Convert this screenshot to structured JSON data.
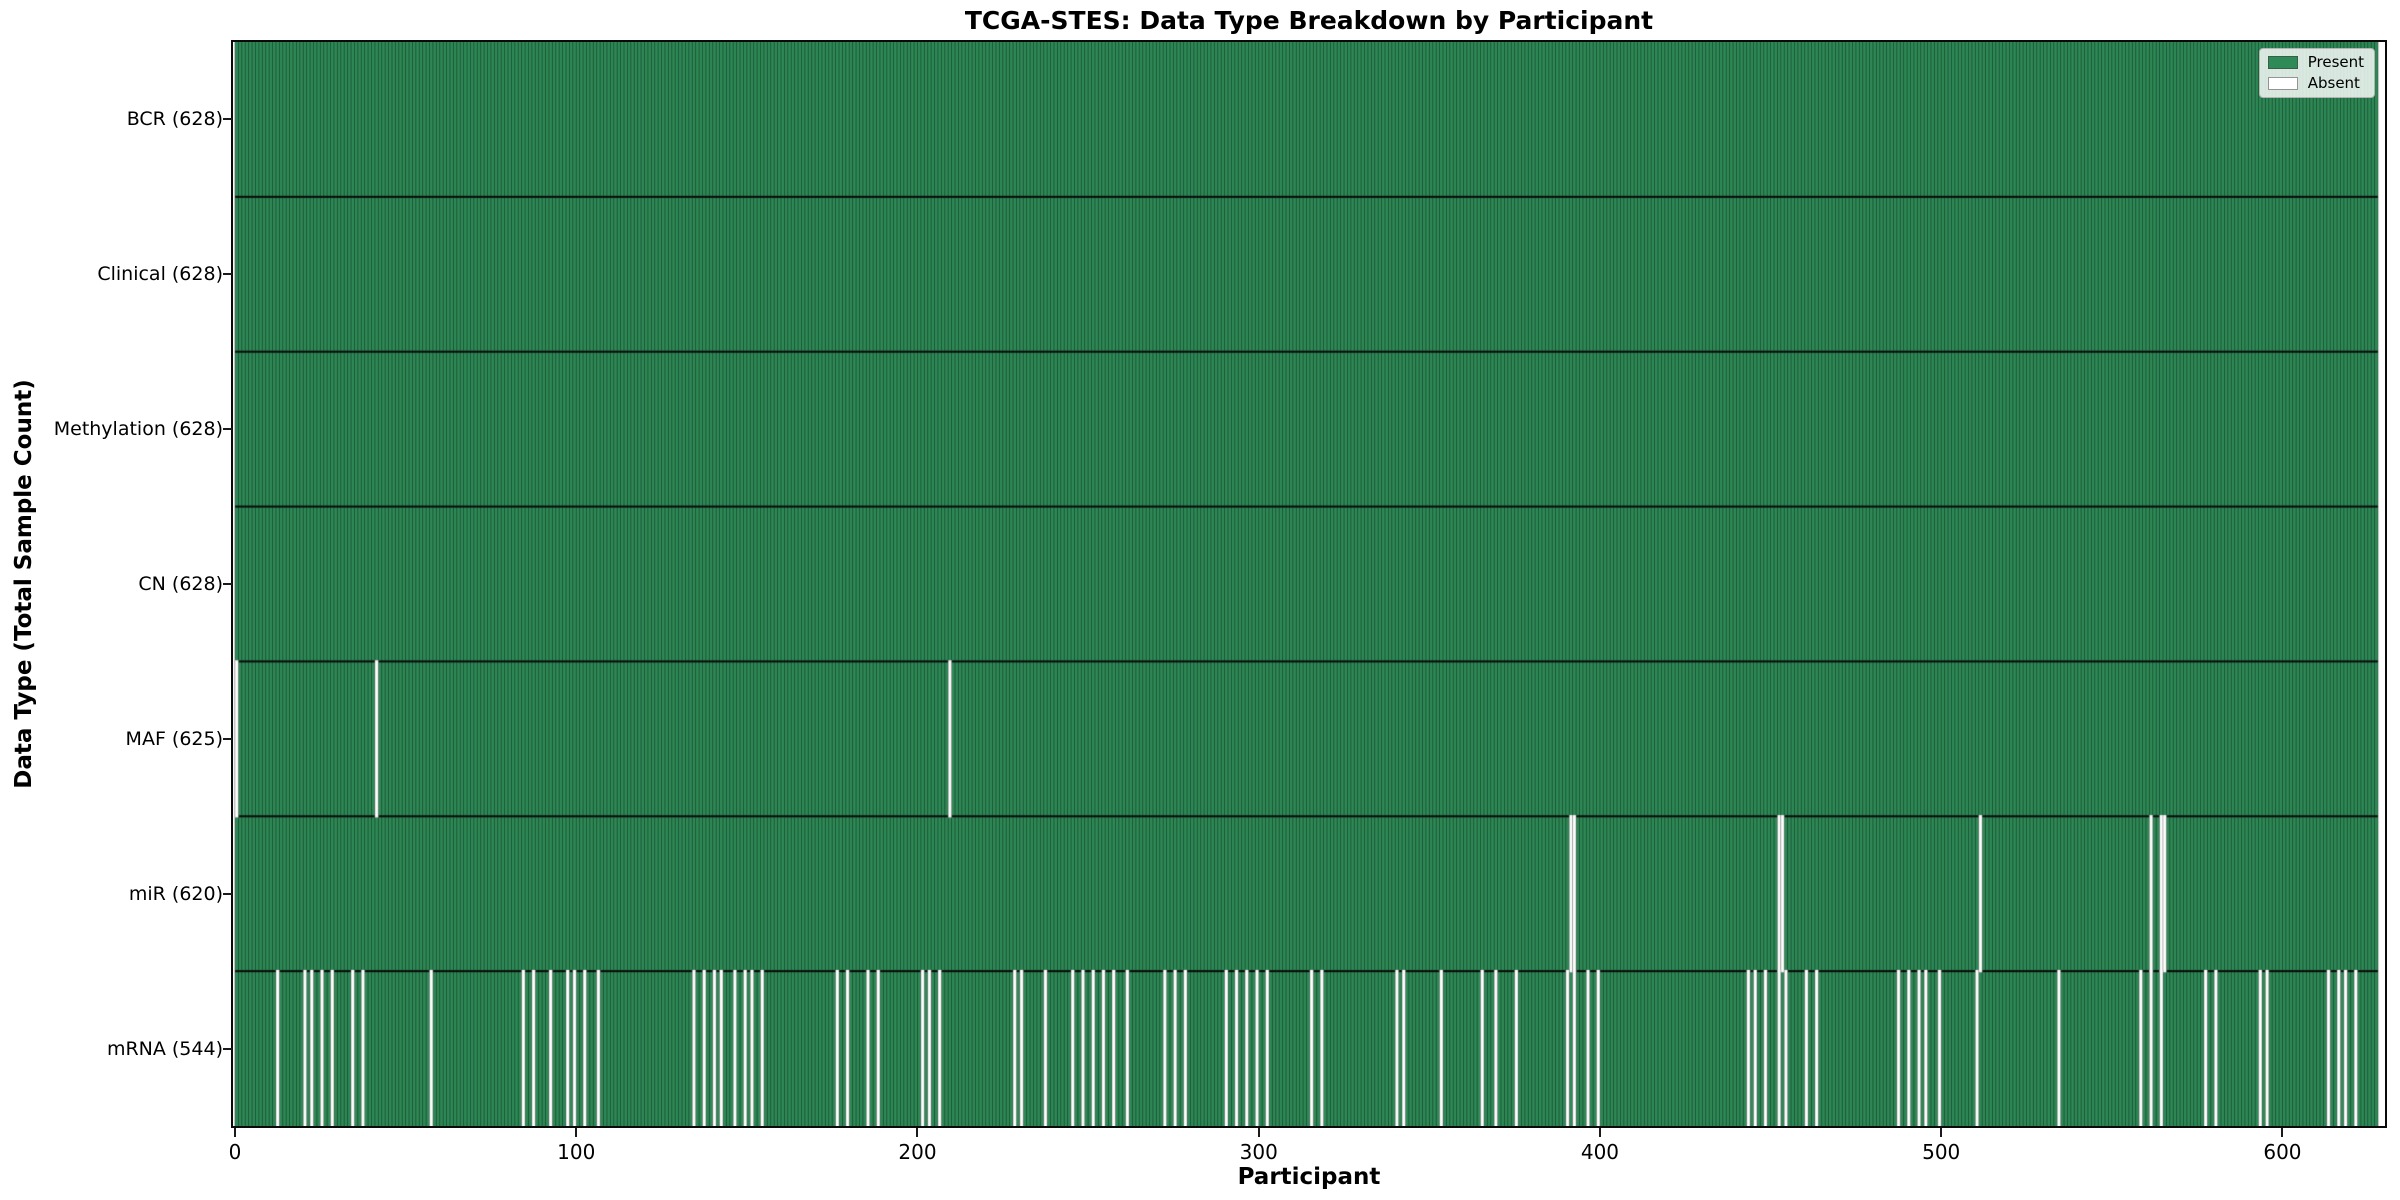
{
  "chart_data": {
    "type": "heatmap",
    "title": "TCGA-STES: Data Type Breakdown by Participant",
    "xlabel": "Participant",
    "ylabel": "Data Type (Total Sample Count)",
    "x_ticks": [
      0,
      100,
      200,
      300,
      400,
      500,
      600
    ],
    "x_range": [
      0,
      628
    ],
    "n_participants": 628,
    "grid": false,
    "legend_position": "upper right",
    "legend": [
      {
        "label": "Present",
        "color": "#2e8b57"
      },
      {
        "label": "Absent",
        "color": "#ffffff"
      }
    ],
    "colors": {
      "present": "#2e8b57",
      "absent": "#ffffff",
      "bar_edge": "rgba(0,0,0,0.5)",
      "absent_edge": "rgba(110,110,110,0.5)",
      "row_divider": "#0a0a0a",
      "frame": "#0a0a0a"
    },
    "rows": [
      {
        "label": "BCR (628)",
        "name": "BCR",
        "present_count": 628,
        "absent_participants": []
      },
      {
        "label": "Clinical (628)",
        "name": "Clinical",
        "present_count": 628,
        "absent_participants": []
      },
      {
        "label": "Methylation (628)",
        "name": "Methylation",
        "present_count": 628,
        "absent_participants": []
      },
      {
        "label": "CN (628)",
        "name": "CN",
        "present_count": 628,
        "absent_participants": []
      },
      {
        "label": "MAF (625)",
        "name": "MAF",
        "present_count": 625,
        "absent_participants": [
          0,
          41,
          209
        ]
      },
      {
        "label": "miR (620)",
        "name": "miR",
        "present_count": 620,
        "absent_participants": [
          391,
          392,
          452,
          453,
          511,
          561,
          564,
          565
        ]
      },
      {
        "label": "mRNA (544)",
        "name": "mRNA",
        "present_count": 544,
        "absent_participants": [
          12,
          20,
          22,
          25,
          28,
          34,
          37,
          57,
          84,
          87,
          92,
          97,
          99,
          102,
          106,
          134,
          137,
          140,
          142,
          146,
          149,
          151,
          154,
          176,
          179,
          185,
          188,
          201,
          203,
          206,
          228,
          230,
          237,
          245,
          248,
          251,
          254,
          257,
          261,
          272,
          275,
          278,
          290,
          293,
          296,
          299,
          302,
          315,
          318,
          340,
          342,
          353,
          365,
          369,
          375,
          390,
          392,
          396,
          399,
          443,
          445,
          448,
          452,
          454,
          460,
          463,
          487,
          490,
          493,
          495,
          499,
          510,
          534,
          558,
          561,
          564,
          577,
          580,
          593,
          595,
          613,
          616,
          618,
          621
        ]
      }
    ]
  }
}
